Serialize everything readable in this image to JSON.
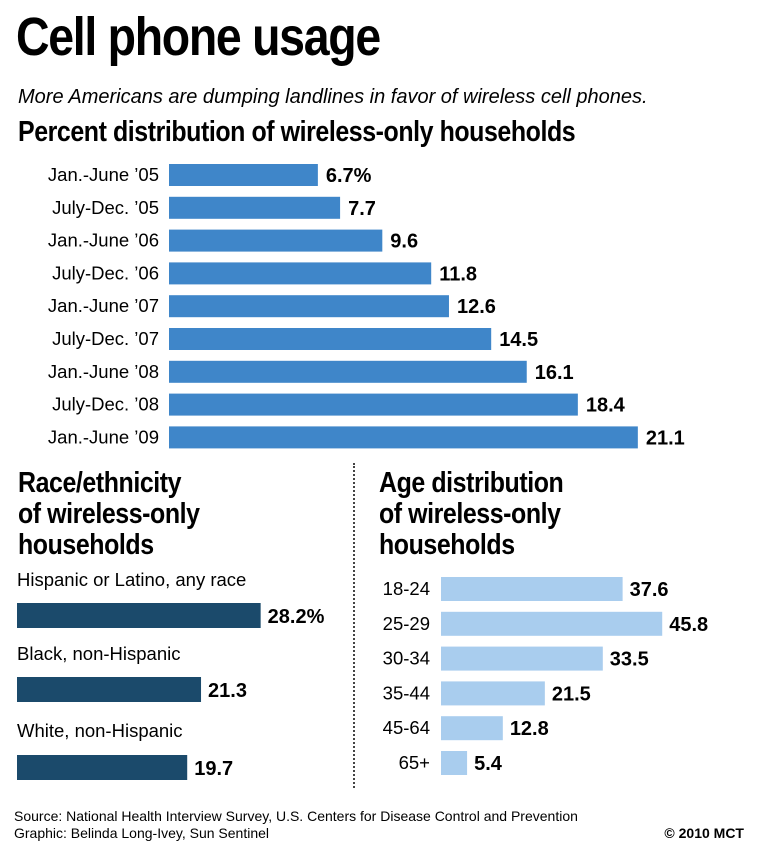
{
  "header": {
    "title": "Cell phone usage",
    "subtitle": "More Americans are dumping landlines in favor of wireless cell phones."
  },
  "colors": {
    "trend_bar": "#3f86c9",
    "race_bar": "#1b4a6b",
    "age_bar": "#a9cdee"
  },
  "chart_data": [
    {
      "type": "bar",
      "orientation": "horizontal",
      "title": "Percent distribution of wireless-only households",
      "categories": [
        "Jan.-June ’05",
        "July-Dec. ’05",
        "Jan.-June ’06",
        "July-Dec. ’06",
        "Jan.-June ’07",
        "July-Dec. ’07",
        "Jan.-June ’08",
        "July-Dec. ’08",
        "Jan.-June ’09"
      ],
      "values": [
        6.7,
        7.7,
        9.6,
        11.8,
        12.6,
        14.5,
        16.1,
        18.4,
        21.1
      ],
      "value_labels": [
        "6.7%",
        "7.7",
        "9.6",
        "11.8",
        "12.6",
        "14.5",
        "16.1",
        "18.4",
        "21.1"
      ]
    },
    {
      "type": "bar",
      "orientation": "horizontal",
      "title_lines": [
        "Race/ethnicity",
        "of wireless-only",
        "households"
      ],
      "categories": [
        "Hispanic or Latino, any race",
        "Black, non-Hispanic",
        "White, non-Hispanic"
      ],
      "values": [
        28.2,
        21.3,
        19.7
      ],
      "value_labels": [
        "28.2%",
        "21.3",
        "19.7"
      ]
    },
    {
      "type": "bar",
      "orientation": "horizontal",
      "title_lines": [
        "Age distribution",
        "of wireless-only",
        "households"
      ],
      "categories": [
        "18-24",
        "25-29",
        "30-34",
        "35-44",
        "45-64",
        "65+"
      ],
      "values": [
        37.6,
        45.8,
        33.5,
        21.5,
        12.8,
        5.4
      ],
      "value_labels": [
        "37.6",
        "45.8",
        "33.5",
        "21.5",
        "12.8",
        "5.4"
      ]
    }
  ],
  "footer": {
    "source": "Source: National Health Interview Survey, U.S. Centers for Disease Control and Prevention",
    "graphic": "Graphic: Belinda Long-Ivey, Sun Sentinel",
    "copyright": "© 2010 MCT"
  }
}
